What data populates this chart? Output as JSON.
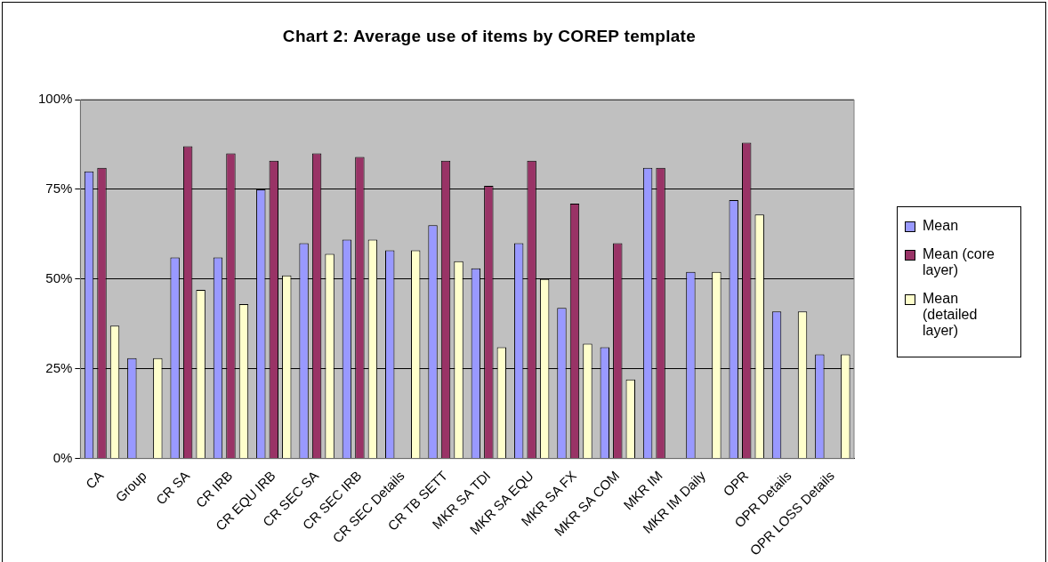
{
  "chart_data": {
    "type": "bar",
    "title": "Chart 2: Average use of items by COREP template",
    "categories": [
      "CA",
      "Group",
      "CR SA",
      "CR IRB",
      "CR EQU IRB",
      "CR SEC SA",
      "CR SEC IRB",
      "CR SEC Details",
      "CR TB SETT",
      "MKR SA TDI",
      "MKR SA EQU",
      "MKR SA FX",
      "MKR SA COM",
      "MKR IM",
      "MKR IM Daily",
      "OPR",
      "OPR Details",
      "OPR LOSS Details"
    ],
    "series": [
      {
        "name": "Mean",
        "color": "#9999ff",
        "values": [
          80,
          28,
          56,
          56,
          75,
          60,
          61,
          58,
          65,
          53,
          60,
          42,
          31,
          81,
          52,
          72,
          41,
          29
        ]
      },
      {
        "name": "Mean (core layer)",
        "color": "#993366",
        "values": [
          81,
          null,
          87,
          85,
          83,
          85,
          84,
          null,
          83,
          76,
          83,
          71,
          60,
          81,
          null,
          88,
          null,
          null
        ]
      },
      {
        "name": "Mean (detailed layer)",
        "color": "#ffffcc",
        "values": [
          37,
          28,
          47,
          43,
          51,
          57,
          61,
          58,
          55,
          31,
          50,
          32,
          22,
          null,
          52,
          68,
          41,
          29
        ]
      }
    ],
    "ylim": [
      0,
      100
    ],
    "yticks": [
      {
        "value": 0,
        "label": "0%"
      },
      {
        "value": 25,
        "label": "25%"
      },
      {
        "value": 50,
        "label": "50%"
      },
      {
        "value": 75,
        "label": "75%"
      },
      {
        "value": 100,
        "label": "100%"
      }
    ],
    "grid": "y",
    "legend": "right"
  }
}
